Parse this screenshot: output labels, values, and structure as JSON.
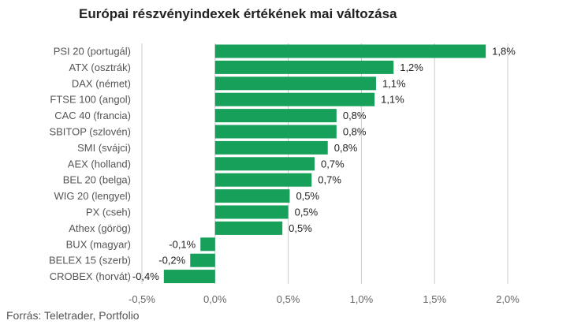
{
  "title": "Európai részvényindexek értékének mai változása",
  "source": "Forrás: Teletrader, Portfolio",
  "colors": {
    "bar": "#17a05a",
    "grid": "#cccccc"
  },
  "chart_data": {
    "type": "bar",
    "orientation": "horizontal",
    "title": "Európai részvényindexek értékének mai változása",
    "xlabel": "",
    "ylabel": "",
    "xlim": [
      -0.5,
      2.0
    ],
    "grid": true,
    "categories": [
      "PSI 20 (portugál)",
      "ATX (osztrák)",
      "DAX (német)",
      "FTSE 100 (angol)",
      "CAC 40 (francia)",
      "SBITOP (szlovén)",
      "SMI (svájci)",
      "AEX (holland)",
      "BEL 20 (belga)",
      "WIG 20 (lengyel)",
      "PX (cseh)",
      "Athex (görög)",
      "BUX (magyar)",
      "BELEX 15 (szerb)",
      "CROBEX (horvát)"
    ],
    "values": [
      1.85,
      1.22,
      1.1,
      1.09,
      0.83,
      0.83,
      0.77,
      0.68,
      0.66,
      0.51,
      0.5,
      0.46,
      -0.1,
      -0.17,
      -0.35
    ],
    "value_labels": [
      "1,8%",
      "1,2%",
      "1,1%",
      "1,1%",
      "0,8%",
      "0,8%",
      "0,8%",
      "0,7%",
      "0,7%",
      "0,5%",
      "0,5%",
      "0,5%",
      "-0,1%",
      "-0,2%",
      "-0,4%"
    ],
    "ticks": [
      -0.5,
      0.0,
      0.5,
      1.0,
      1.5,
      2.0
    ],
    "tick_labels": [
      "-0,5%",
      "0,0%",
      "0,5%",
      "1,0%",
      "1,5%",
      "2,0%"
    ]
  }
}
